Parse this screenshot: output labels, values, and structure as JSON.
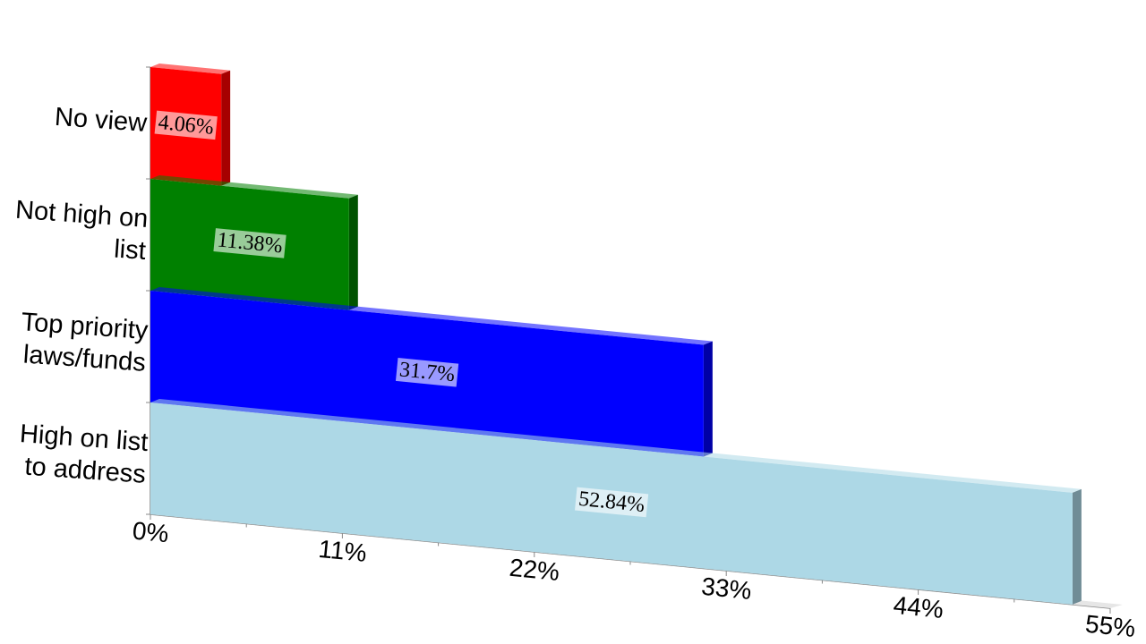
{
  "chart_data": {
    "type": "bar",
    "categories": [
      "No view",
      "Not high on list",
      "Top priority laws/funds",
      "High on list to address"
    ],
    "values": [
      4.06,
      11.38,
      31.7,
      52.84
    ],
    "value_labels": [
      "4.06%",
      "11.38%",
      "31.7%",
      "52.84%"
    ],
    "colors": [
      "#ff0000",
      "#008000",
      "#0000ff",
      "#add8e6"
    ],
    "xlim": [
      0,
      55
    ],
    "xticks": [
      {
        "value": 0,
        "label": "0%"
      },
      {
        "value": 11,
        "label": "11%"
      },
      {
        "value": 22,
        "label": "22%"
      },
      {
        "value": 33,
        "label": "33%"
      },
      {
        "value": 44,
        "label": "44%"
      },
      {
        "value": 55,
        "label": "55%"
      }
    ]
  }
}
